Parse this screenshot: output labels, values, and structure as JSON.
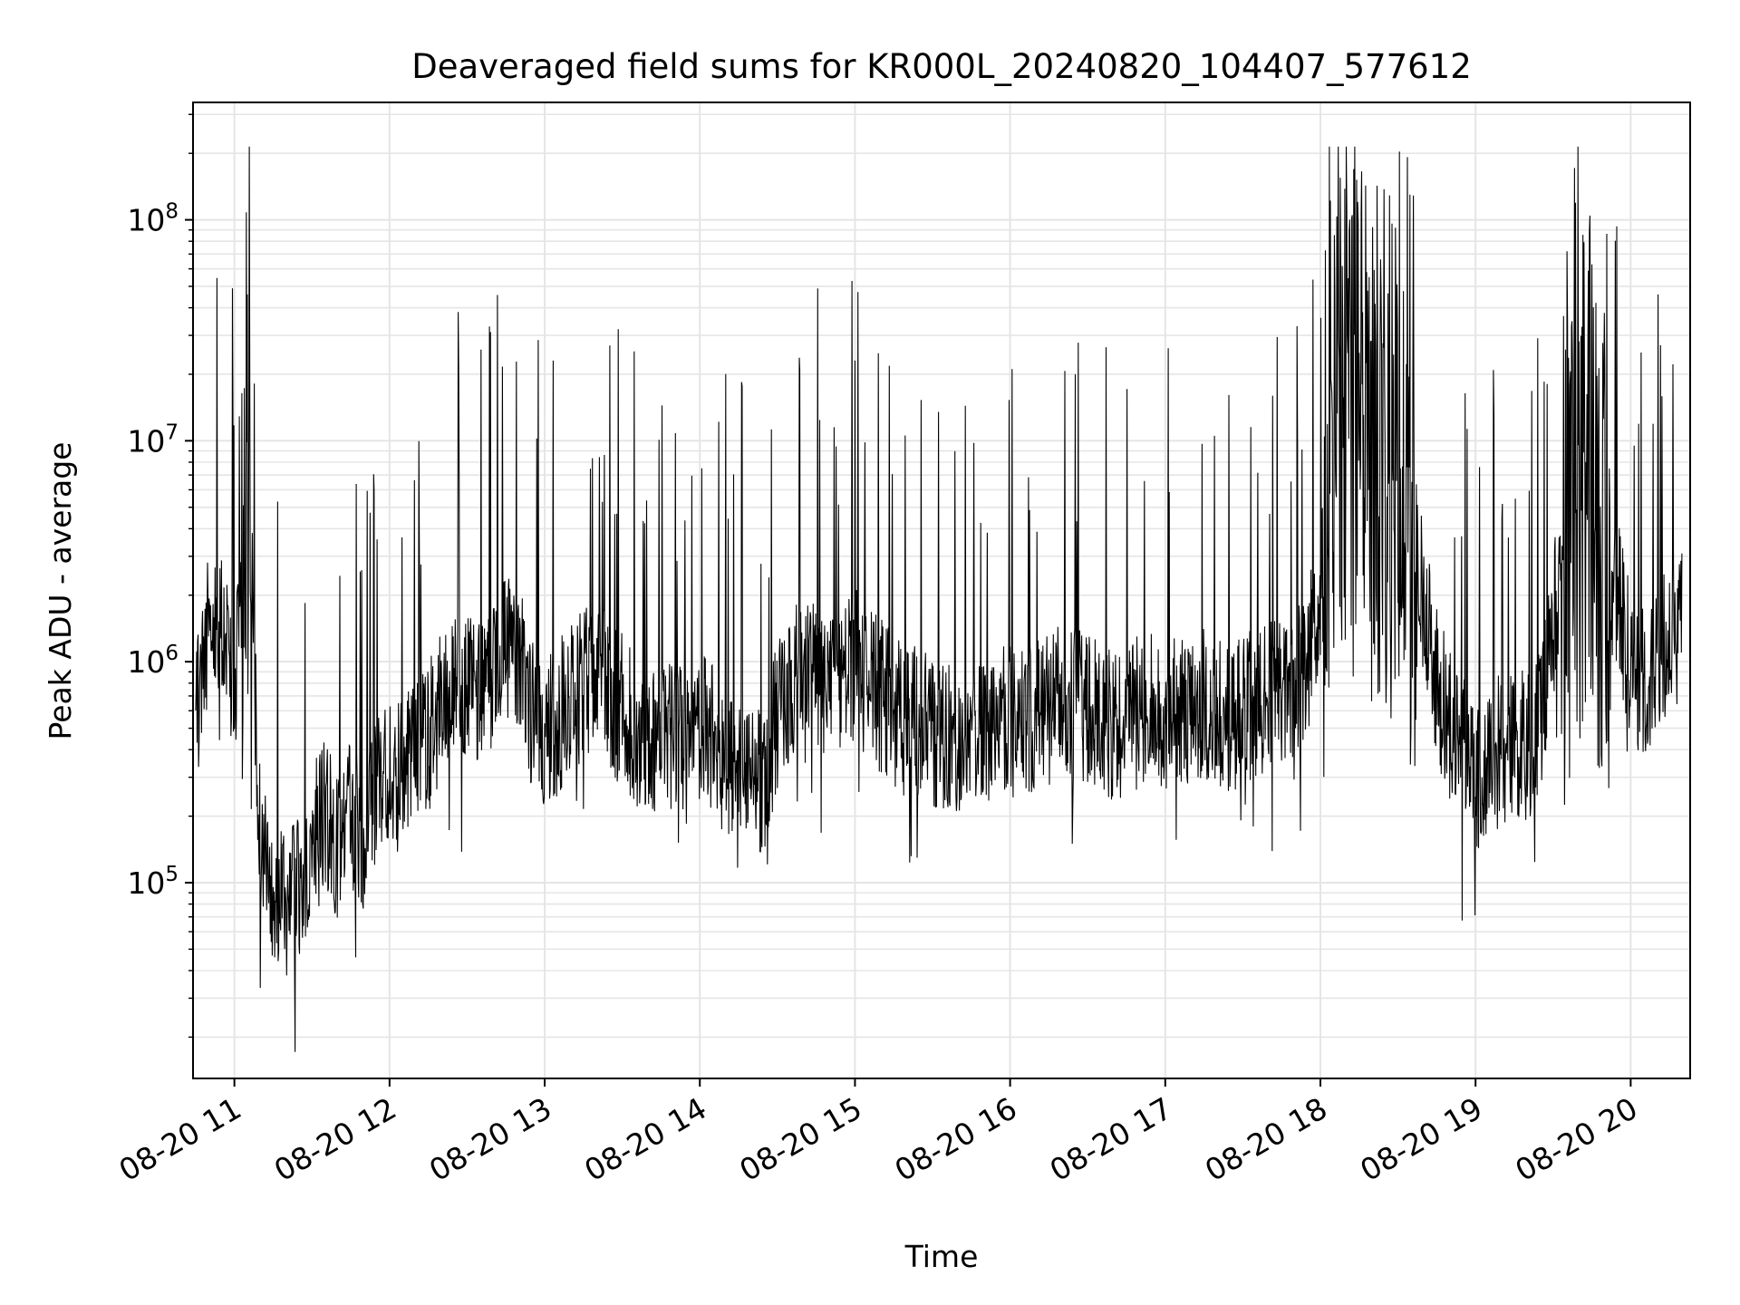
{
  "chart_data": {
    "type": "line",
    "title": "Deaveraged field sums for KR000L_20240820_104407_577612",
    "xlabel": "Time",
    "ylabel": "Peak ADU - average",
    "x_scale": "time",
    "y_scale": "log",
    "grid": true,
    "legend": "none",
    "xlim": [
      "2024-08-20 10:44",
      "2024-08-20 20:23"
    ],
    "ylim": [
      13000,
      340000000
    ],
    "x_ticks": [
      "08-20 11",
      "08-20 12",
      "08-20 13",
      "08-20 14",
      "08-20 15",
      "08-20 16",
      "08-20 17",
      "08-20 18",
      "08-20 19",
      "08-20 20"
    ],
    "y_ticks": [
      {
        "value": 100000,
        "base": "10",
        "exp": "5"
      },
      {
        "value": 1000000,
        "base": "10",
        "exp": "6"
      },
      {
        "value": 10000000,
        "base": "10",
        "exp": "7"
      },
      {
        "value": 100000000,
        "base": "10",
        "exp": "8"
      }
    ],
    "line_color": "#000000",
    "grid_color": "#e5e5e5",
    "series": [
      {
        "x": [
          "2024-08-20 10:45",
          "2024-08-20 10:50",
          "2024-08-20 10:55",
          "2024-08-20 11:00",
          "2024-08-20 11:05",
          "2024-08-20 11:10",
          "2024-08-20 11:15",
          "2024-08-20 11:20",
          "2024-08-20 11:25",
          "2024-08-20 11:30",
          "2024-08-20 11:35",
          "2024-08-20 11:40",
          "2024-08-20 11:45",
          "2024-08-20 11:50",
          "2024-08-20 11:55",
          "2024-08-20 12:00",
          "2024-08-20 12:05",
          "2024-08-20 12:10",
          "2024-08-20 12:15",
          "2024-08-20 12:20",
          "2024-08-20 12:25",
          "2024-08-20 12:30",
          "2024-08-20 12:35",
          "2024-08-20 12:40",
          "2024-08-20 12:45",
          "2024-08-20 12:50",
          "2024-08-20 12:55",
          "2024-08-20 13:00",
          "2024-08-20 13:05",
          "2024-08-20 13:10",
          "2024-08-20 13:15",
          "2024-08-20 13:20",
          "2024-08-20 13:25",
          "2024-08-20 13:30",
          "2024-08-20 13:35",
          "2024-08-20 13:40",
          "2024-08-20 13:45",
          "2024-08-20 13:50",
          "2024-08-20 13:55",
          "2024-08-20 14:00",
          "2024-08-20 14:05",
          "2024-08-20 14:10",
          "2024-08-20 14:15",
          "2024-08-20 14:20",
          "2024-08-20 14:25",
          "2024-08-20 14:30",
          "2024-08-20 14:35",
          "2024-08-20 14:40",
          "2024-08-20 14:45",
          "2024-08-20 14:50",
          "2024-08-20 14:55",
          "2024-08-20 15:00",
          "2024-08-20 15:05",
          "2024-08-20 15:10",
          "2024-08-20 15:15",
          "2024-08-20 15:20",
          "2024-08-20 15:25",
          "2024-08-20 15:30",
          "2024-08-20 15:35",
          "2024-08-20 15:40",
          "2024-08-20 15:45",
          "2024-08-20 15:50",
          "2024-08-20 15:55",
          "2024-08-20 16:00",
          "2024-08-20 16:05",
          "2024-08-20 16:10",
          "2024-08-20 16:15",
          "2024-08-20 16:20",
          "2024-08-20 16:25",
          "2024-08-20 16:30",
          "2024-08-20 16:35",
          "2024-08-20 16:40",
          "2024-08-20 16:45",
          "2024-08-20 16:50",
          "2024-08-20 16:55",
          "2024-08-20 17:00",
          "2024-08-20 17:05",
          "2024-08-20 17:10",
          "2024-08-20 17:15",
          "2024-08-20 17:20",
          "2024-08-20 17:25",
          "2024-08-20 17:30",
          "2024-08-20 17:35",
          "2024-08-20 17:40",
          "2024-08-20 17:45",
          "2024-08-20 17:50",
          "2024-08-20 17:55",
          "2024-08-20 18:00",
          "2024-08-20 18:05",
          "2024-08-20 18:10",
          "2024-08-20 18:15",
          "2024-08-20 18:20",
          "2024-08-20 18:25",
          "2024-08-20 18:30",
          "2024-08-20 18:35",
          "2024-08-20 18:40",
          "2024-08-20 18:45",
          "2024-08-20 18:50",
          "2024-08-20 18:55",
          "2024-08-20 19:00",
          "2024-08-20 19:05",
          "2024-08-20 19:10",
          "2024-08-20 19:15",
          "2024-08-20 19:20",
          "2024-08-20 19:25",
          "2024-08-20 19:30",
          "2024-08-20 19:35",
          "2024-08-20 19:40",
          "2024-08-20 19:45",
          "2024-08-20 19:50",
          "2024-08-20 19:55",
          "2024-08-20 20:00",
          "2024-08-20 20:05",
          "2024-08-20 20:10",
          "2024-08-20 20:15",
          "2024-08-20 20:20"
        ],
        "y": [
          500000,
          1500000,
          1600000,
          700000,
          9000000,
          150000,
          100000,
          80000,
          90000,
          150000,
          200000,
          150000,
          200000,
          150000,
          250000,
          300000,
          300000,
          400000,
          450000,
          600000,
          700000,
          800000,
          750000,
          900000,
          1200000,
          1000000,
          600000,
          500000,
          550000,
          700000,
          800000,
          900000,
          700000,
          600000,
          500000,
          400000,
          500000,
          450000,
          400000,
          500000,
          450000,
          350000,
          350000,
          300000,
          250000,
          600000,
          800000,
          1000000,
          900000,
          700000,
          800000,
          1000000,
          800000,
          700000,
          600000,
          500000,
          550000,
          500000,
          450000,
          400000,
          450000,
          500000,
          500000,
          550000,
          500000,
          550000,
          600000,
          700000,
          650000,
          600000,
          550000,
          500000,
          550000,
          600000,
          650000,
          550000,
          600000,
          600000,
          650000,
          600000,
          550000,
          600000,
          650000,
          700000,
          700000,
          800000,
          1000000,
          2000000,
          5000000,
          8000000,
          10000000,
          8000000,
          7000000,
          5000000,
          3000000,
          2000000,
          800000,
          500000,
          400000,
          300000,
          350000,
          400000,
          450000,
          400000,
          500000,
          1500000,
          3000000,
          5000000,
          4000000,
          3000000,
          2000000,
          1000000,
          800000,
          900000,
          1500000,
          2000000
        ]
      }
    ]
  }
}
